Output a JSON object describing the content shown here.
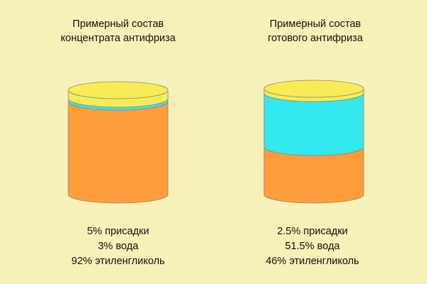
{
  "colors": {
    "background": "#f6f1b8",
    "additives": "#f7ec57",
    "water": "#33e8ee",
    "ethylene_glycol": "#ff9c3c",
    "outline": "#8a8a7a"
  },
  "diagrams": [
    {
      "title_lines": [
        "Примерный состав",
        "концентрата антифриза"
      ],
      "composition": {
        "additives": 5,
        "water": 3,
        "ethylene_glycol": 92
      },
      "legend": [
        "5% присадки",
        "3% вода",
        "92% этиленгликоль"
      ]
    },
    {
      "title_lines": [
        "Примерный состав",
        "готового антифриза"
      ],
      "composition": {
        "additives": 2.5,
        "water": 51.5,
        "ethylene_glycol": 46
      },
      "legend": [
        "2.5% присадки",
        "51.5% вода",
        "46% этиленгликоль"
      ]
    }
  ]
}
